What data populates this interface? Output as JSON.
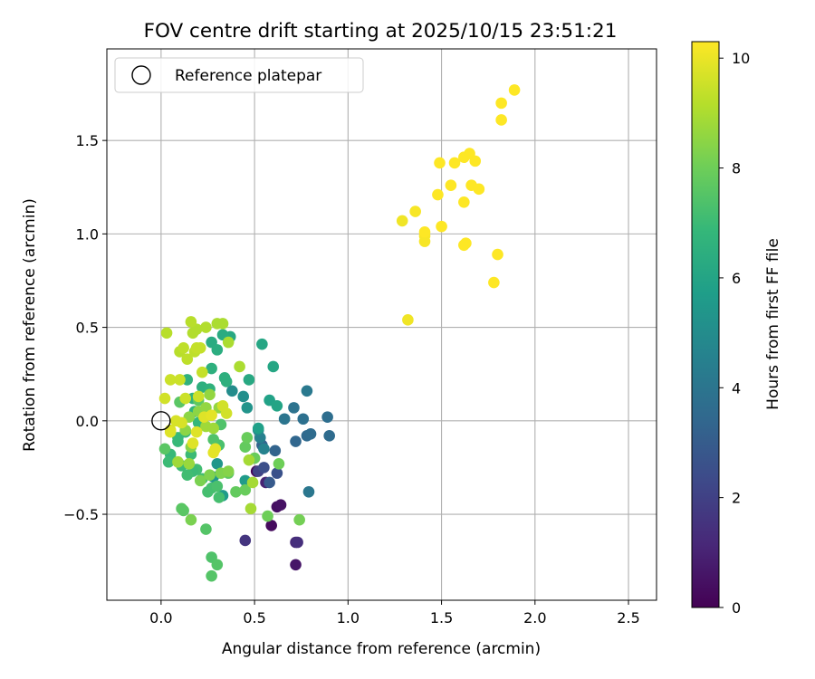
{
  "chart_data": {
    "type": "scatter",
    "title": "FOV centre drift starting at 2025/10/15 23:51:21",
    "xlabel": "Angular distance from reference (arcmin)",
    "ylabel": "Rotation from reference (arcmin)",
    "xlim": [
      -0.29,
      2.65
    ],
    "ylim": [
      -0.96,
      1.99
    ],
    "xticks": [
      0.0,
      0.5,
      1.0,
      1.5,
      2.0,
      2.5
    ],
    "xtick_labels": [
      "0.0",
      "0.5",
      "1.0",
      "1.5",
      "2.0",
      "2.5"
    ],
    "yticks": [
      -0.5,
      0.0,
      0.5,
      1.0,
      1.5
    ],
    "ytick_labels": [
      "−0.5",
      "0.0",
      "0.5",
      "1.0",
      "1.5"
    ],
    "grid": true,
    "legend": {
      "position": "upper-left",
      "entries": [
        "Reference platepar"
      ]
    },
    "reference_point": {
      "x": 0.0,
      "y": 0.0
    },
    "colorbar": {
      "label": "Hours from first FF file",
      "min": 0,
      "max": 10.3,
      "ticks": [
        0,
        2,
        4,
        6,
        8,
        10
      ],
      "tick_labels": [
        "0",
        "2",
        "4",
        "6",
        "8",
        "10"
      ],
      "colormap": [
        "#440154",
        "#482878",
        "#3e4989",
        "#31688e",
        "#26828e",
        "#1f9e89",
        "#35b779",
        "#6ece58",
        "#b5de2b",
        "#fde725"
      ]
    },
    "point_fields": [
      "x",
      "y",
      "hours"
    ],
    "points": [
      [
        0.51,
        -0.27,
        0.2
      ],
      [
        0.59,
        -0.56,
        0.3
      ],
      [
        0.62,
        -0.46,
        0.4
      ],
      [
        0.64,
        -0.45,
        0.5
      ],
      [
        0.72,
        -0.77,
        0.6
      ],
      [
        0.56,
        -0.33,
        1.0
      ],
      [
        0.72,
        -0.65,
        1.2
      ],
      [
        0.73,
        -0.65,
        1.4
      ],
      [
        0.45,
        -0.64,
        1.6
      ],
      [
        0.52,
        -0.27,
        2.1
      ],
      [
        0.55,
        -0.25,
        2.5
      ],
      [
        0.62,
        -0.28,
        2.6
      ],
      [
        0.58,
        -0.33,
        2.9
      ],
      [
        0.54,
        -0.13,
        3.2
      ],
      [
        0.61,
        -0.16,
        3.3
      ],
      [
        0.72,
        -0.11,
        3.4
      ],
      [
        0.78,
        -0.08,
        3.5
      ],
      [
        0.8,
        -0.07,
        3.6
      ],
      [
        0.9,
        -0.08,
        3.6
      ],
      [
        0.89,
        0.02,
        3.7
      ],
      [
        0.76,
        0.01,
        3.8
      ],
      [
        0.71,
        0.07,
        3.9
      ],
      [
        0.66,
        0.01,
        4.0
      ],
      [
        0.79,
        -0.38,
        4.1
      ],
      [
        0.78,
        0.16,
        4.2
      ],
      [
        0.53,
        -0.09,
        4.5
      ],
      [
        0.55,
        -0.15,
        4.6
      ],
      [
        0.52,
        -0.05,
        4.8
      ],
      [
        0.38,
        0.16,
        5.0
      ],
      [
        0.44,
        0.13,
        5.1
      ],
      [
        0.46,
        0.07,
        5.3
      ],
      [
        0.3,
        -0.23,
        5.4
      ],
      [
        0.28,
        -0.3,
        5.5
      ],
      [
        0.33,
        -0.4,
        5.6
      ],
      [
        0.45,
        -0.32,
        5.6
      ],
      [
        0.52,
        -0.04,
        5.8
      ],
      [
        0.58,
        0.11,
        5.9
      ],
      [
        0.62,
        0.08,
        6.0
      ],
      [
        0.6,
        0.29,
        6.1
      ],
      [
        0.54,
        0.41,
        6.1
      ],
      [
        0.47,
        0.22,
        6.2
      ],
      [
        0.37,
        0.45,
        6.2
      ],
      [
        0.33,
        0.46,
        6.3
      ],
      [
        0.27,
        0.42,
        6.3
      ],
      [
        0.3,
        0.38,
        6.4
      ],
      [
        0.34,
        0.23,
        6.5
      ],
      [
        0.35,
        0.21,
        6.5
      ],
      [
        0.27,
        0.28,
        6.5
      ],
      [
        0.22,
        0.18,
        6.5
      ],
      [
        0.26,
        0.17,
        6.6
      ],
      [
        0.14,
        0.22,
        6.6
      ],
      [
        0.17,
        0.12,
        6.7
      ],
      [
        0.18,
        0.05,
        6.7
      ],
      [
        0.2,
        -0.01,
        6.8
      ],
      [
        0.13,
        -0.06,
        6.8
      ],
      [
        0.09,
        -0.09,
        6.9
      ],
      [
        0.09,
        -0.11,
        6.9
      ],
      [
        0.16,
        -0.18,
        7.0
      ],
      [
        0.05,
        -0.18,
        6.9
      ],
      [
        0.11,
        -0.24,
        7.0
      ],
      [
        0.04,
        -0.22,
        7.0
      ],
      [
        0.19,
        -0.26,
        7.1
      ],
      [
        0.17,
        -0.27,
        7.0
      ],
      [
        0.14,
        -0.29,
        7.1
      ],
      [
        0.22,
        -0.31,
        7.1
      ],
      [
        0.25,
        -0.38,
        7.2
      ],
      [
        0.27,
        -0.36,
        7.2
      ],
      [
        0.31,
        -0.41,
        7.2
      ],
      [
        0.3,
        -0.35,
        7.3
      ],
      [
        0.31,
        -0.13,
        7.3
      ],
      [
        0.28,
        -0.1,
        7.4
      ],
      [
        0.32,
        -0.02,
        7.4
      ],
      [
        0.27,
        -0.73,
        7.4
      ],
      [
        0.3,
        -0.77,
        7.5
      ],
      [
        0.27,
        -0.83,
        7.5
      ],
      [
        0.24,
        -0.58,
        7.5
      ],
      [
        0.11,
        -0.47,
        7.6
      ],
      [
        0.12,
        -0.48,
        7.6
      ],
      [
        0.02,
        -0.15,
        7.6
      ],
      [
        0.1,
        0.1,
        7.6
      ],
      [
        0.2,
        0.11,
        7.7
      ],
      [
        0.36,
        -0.28,
        7.7
      ],
      [
        0.4,
        -0.38,
        7.8
      ],
      [
        0.45,
        -0.14,
        7.8
      ],
      [
        0.46,
        -0.09,
        7.9
      ],
      [
        0.45,
        -0.37,
        7.9
      ],
      [
        0.5,
        -0.2,
        7.9
      ],
      [
        0.57,
        -0.51,
        8.0
      ],
      [
        0.63,
        -0.23,
        8.0
      ],
      [
        0.74,
        -0.53,
        8.1
      ],
      [
        0.16,
        -0.53,
        8.2
      ],
      [
        0.21,
        -0.32,
        8.2
      ],
      [
        0.26,
        -0.29,
        8.3
      ],
      [
        0.32,
        -0.28,
        8.3
      ],
      [
        0.36,
        -0.27,
        8.4
      ],
      [
        0.16,
        -0.14,
        8.4
      ],
      [
        0.13,
        -0.05,
        8.5
      ],
      [
        0.15,
        0.02,
        8.5
      ],
      [
        0.2,
        0.05,
        8.5
      ],
      [
        0.24,
        0.07,
        8.6
      ],
      [
        0.26,
        0.14,
        8.6
      ],
      [
        0.31,
        0.07,
        8.6
      ],
      [
        0.15,
        -0.23,
        8.7
      ],
      [
        0.09,
        -0.22,
        8.8
      ],
      [
        0.24,
        -0.03,
        8.8
      ],
      [
        0.28,
        -0.04,
        8.8
      ],
      [
        0.48,
        -0.47,
        8.9
      ],
      [
        0.49,
        -0.33,
        8.9
      ],
      [
        0.47,
        -0.21,
        8.9
      ],
      [
        0.42,
        0.29,
        9.0
      ],
      [
        0.36,
        0.42,
        9.0
      ],
      [
        0.33,
        0.52,
        9.0
      ],
      [
        0.3,
        0.52,
        9.0
      ],
      [
        0.24,
        0.5,
        9.1
      ],
      [
        0.17,
        0.47,
        9.1
      ],
      [
        0.19,
        0.49,
        9.1
      ],
      [
        0.16,
        0.53,
        9.2
      ],
      [
        0.03,
        0.47,
        9.2
      ],
      [
        0.1,
        0.37,
        9.2
      ],
      [
        0.12,
        0.39,
        9.3
      ],
      [
        0.14,
        0.33,
        9.3
      ],
      [
        0.18,
        0.37,
        9.3
      ],
      [
        0.19,
        0.39,
        9.4
      ],
      [
        0.22,
        0.26,
        9.4
      ],
      [
        0.21,
        0.39,
        9.4
      ],
      [
        0.05,
        0.22,
        9.5
      ],
      [
        0.1,
        0.22,
        9.5
      ],
      [
        0.13,
        0.12,
        9.5
      ],
      [
        0.2,
        0.13,
        9.5
      ],
      [
        0.33,
        0.08,
        9.6
      ],
      [
        0.35,
        0.04,
        9.6
      ],
      [
        0.02,
        0.12,
        9.6
      ],
      [
        0.05,
        -0.05,
        9.7
      ],
      [
        0.08,
        0.0,
        9.7
      ],
      [
        0.11,
        -0.01,
        9.7
      ],
      [
        0.05,
        -0.06,
        9.8
      ],
      [
        0.19,
        -0.06,
        9.8
      ],
      [
        0.23,
        0.02,
        9.8
      ],
      [
        0.17,
        -0.12,
        9.8
      ],
      [
        0.27,
        0.03,
        9.9
      ],
      [
        0.28,
        -0.17,
        9.9
      ],
      [
        0.29,
        -0.15,
        9.9
      ],
      [
        1.32,
        0.54,
        10.1
      ],
      [
        1.29,
        1.07,
        10.1
      ],
      [
        1.36,
        1.12,
        10.2
      ],
      [
        1.41,
        0.99,
        10.2
      ],
      [
        1.41,
        0.96,
        10.2
      ],
      [
        1.41,
        1.01,
        10.3
      ],
      [
        1.48,
        1.21,
        10.3
      ],
      [
        1.49,
        1.38,
        10.3
      ],
      [
        1.5,
        1.04,
        10.3
      ],
      [
        1.55,
        1.26,
        10.3
      ],
      [
        1.57,
        1.38,
        10.3
      ],
      [
        1.62,
        1.41,
        10.3
      ],
      [
        1.62,
        1.17,
        10.3
      ],
      [
        1.62,
        0.94,
        10.3
      ],
      [
        1.63,
        0.95,
        10.3
      ],
      [
        1.65,
        1.43,
        10.3
      ],
      [
        1.66,
        1.26,
        10.3
      ],
      [
        1.68,
        1.39,
        10.3
      ],
      [
        1.7,
        1.24,
        10.3
      ],
      [
        1.78,
        0.74,
        10.3
      ],
      [
        1.8,
        0.89,
        10.3
      ],
      [
        1.82,
        1.61,
        10.3
      ],
      [
        1.82,
        1.7,
        10.3
      ],
      [
        1.89,
        1.77,
        10.3
      ]
    ]
  }
}
